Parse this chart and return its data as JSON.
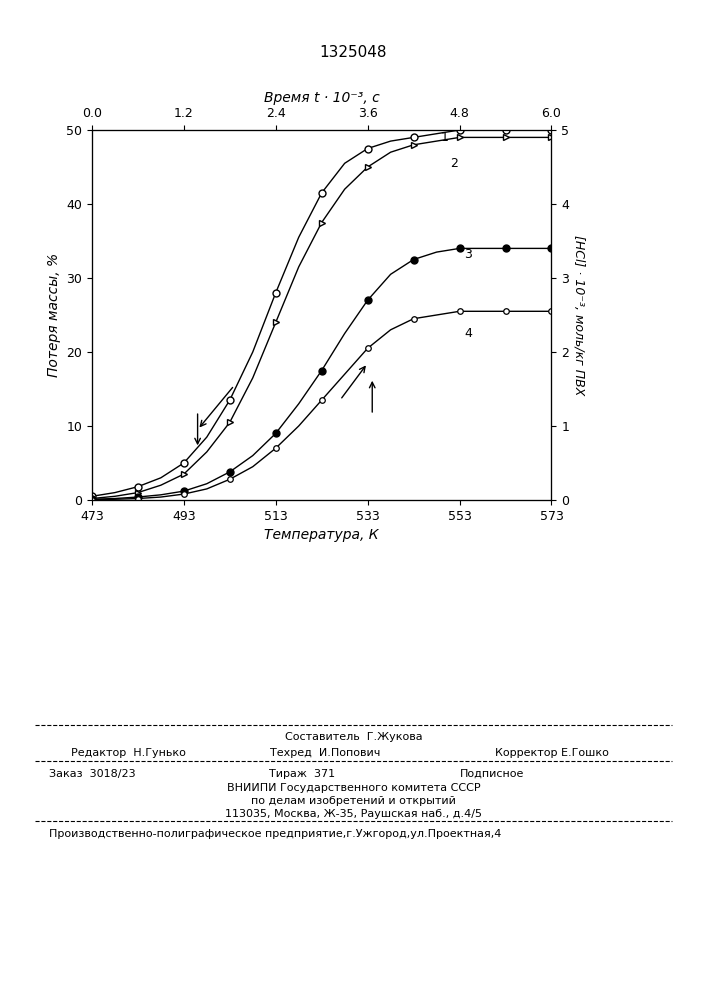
{
  "title": "1325048",
  "top_xlabel": "Время t · 10⁻³, с",
  "bottom_xlabel": "Температура, К",
  "left_ylabel": "Потеря массы, %",
  "right_ylabel": "[НCl] · 10⁻³, моль/кг ПВХ",
  "x_temp": [
    473,
    478,
    483,
    488,
    493,
    498,
    503,
    508,
    513,
    518,
    523,
    528,
    533,
    538,
    543,
    548,
    553,
    558,
    563,
    568,
    573
  ],
  "curve1": [
    0.5,
    1.0,
    1.8,
    3.0,
    5.0,
    8.5,
    13.5,
    20.0,
    28.0,
    35.5,
    41.5,
    45.5,
    47.5,
    48.5,
    49.0,
    49.5,
    50.0,
    50.0,
    50.0,
    50.0,
    50.0
  ],
  "curve2": [
    0.2,
    0.5,
    1.0,
    2.0,
    3.5,
    6.5,
    10.5,
    16.5,
    24.0,
    31.5,
    37.5,
    42.0,
    45.0,
    47.0,
    48.0,
    48.5,
    49.0,
    49.0,
    49.0,
    49.0,
    49.0
  ],
  "curve3": [
    0.1,
    0.2,
    0.4,
    0.7,
    1.2,
    2.2,
    3.8,
    6.0,
    9.0,
    13.0,
    17.5,
    22.5,
    27.0,
    30.5,
    32.5,
    33.5,
    34.0,
    34.0,
    34.0,
    34.0,
    34.0
  ],
  "curve4": [
    0.05,
    0.1,
    0.2,
    0.4,
    0.8,
    1.5,
    2.8,
    4.5,
    7.0,
    10.0,
    13.5,
    17.0,
    20.5,
    23.0,
    24.5,
    25.0,
    25.5,
    25.5,
    25.5,
    25.5,
    25.5
  ],
  "temp_ticks": [
    473,
    493,
    513,
    533,
    553,
    573
  ],
  "temp_top_ticks": [
    0,
    1.2,
    2.4,
    3.6,
    4.8,
    6.0
  ],
  "ylim_left": [
    0,
    50
  ],
  "ylim_right": [
    0,
    5
  ],
  "background_color": "#ffffff",
  "footer_line1": "Составитель  Г.Жукова",
  "footer_line2_left": "Редактор  Н.Гунько",
  "footer_line2_mid": "Техред  И.Попович",
  "footer_line2_right": "Корректор Е.Гошко",
  "footer_line3_left": "Заказ  3018/23",
  "footer_line3_mid": "Тираж  371",
  "footer_line3_right": "Подписное",
  "footer_line4": "ВНИИПИ Государственного комитета СССР",
  "footer_line5": "по делам изобретений и открытий",
  "footer_line6": "113035, Москва, Ж-35, Раушская наб., д.4/5",
  "footer_line7": "Производственно-полиграфическое предприятие,г.Ужгород,ул.Проектная,4"
}
